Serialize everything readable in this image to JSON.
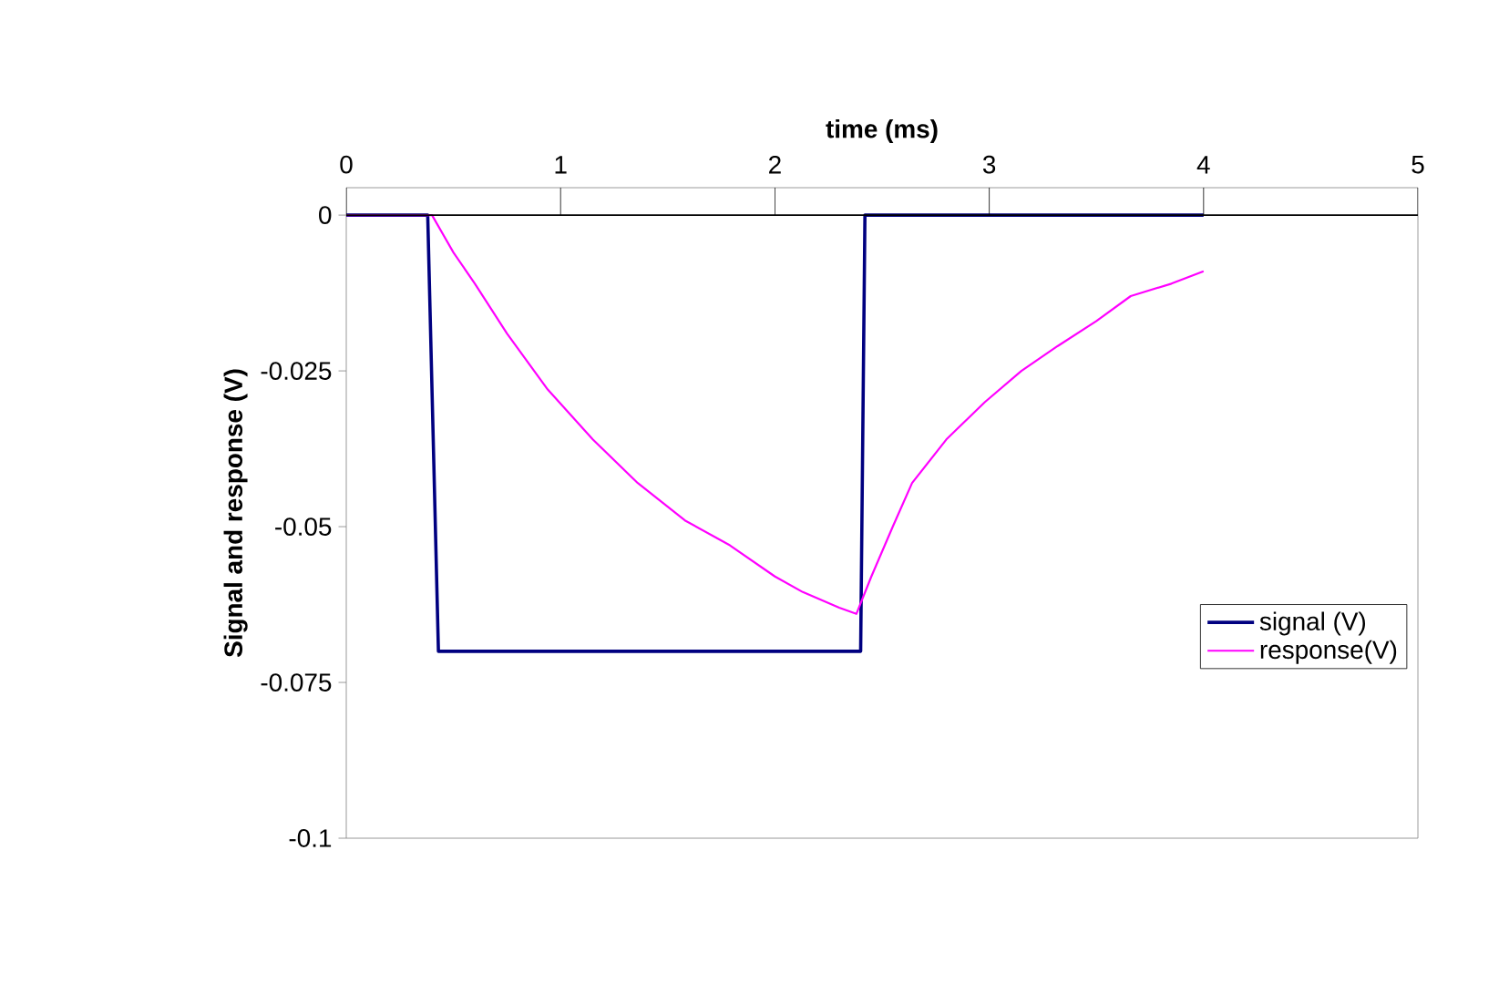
{
  "chart_data": {
    "type": "line",
    "xlabel": "time (ms)",
    "ylabel": "Signal and response (V)",
    "xlim": [
      0,
      5
    ],
    "ylim": [
      -0.1,
      0.0044
    ],
    "xticks": [
      0,
      1,
      2,
      3,
      4,
      5
    ],
    "yticks": [
      -0.1,
      -0.075,
      -0.05,
      -0.025,
      0
    ],
    "legend": "right",
    "grid": false,
    "ref_lines": [
      {
        "axis": "y",
        "value": 0,
        "color": "#000000"
      }
    ],
    "marker": "none",
    "series": [
      {
        "name": "signal (V)",
        "color": "#000080",
        "x": [
          0,
          0.38,
          0.43,
          2.4,
          2.42,
          4.0
        ],
        "values": [
          0,
          0,
          -0.07,
          -0.07,
          0,
          0
        ]
      },
      {
        "name": "response(V)",
        "color": "#ff00ff",
        "x": [
          0,
          0.4,
          0.5,
          0.6,
          0.75,
          0.94,
          1.15,
          1.36,
          1.58,
          1.79,
          2.0,
          2.13,
          2.3,
          2.38,
          2.45,
          2.55,
          2.64,
          2.8,
          2.98,
          3.15,
          3.32,
          3.5,
          3.66,
          3.85,
          4.0
        ],
        "values": [
          0,
          0,
          -0.006,
          -0.011,
          -0.019,
          -0.028,
          -0.036,
          -0.043,
          -0.049,
          -0.053,
          -0.058,
          -0.0605,
          -0.063,
          -0.064,
          -0.058,
          -0.05,
          -0.043,
          -0.036,
          -0.03,
          -0.025,
          -0.021,
          -0.017,
          -0.013,
          -0.011,
          -0.009
        ]
      }
    ]
  }
}
